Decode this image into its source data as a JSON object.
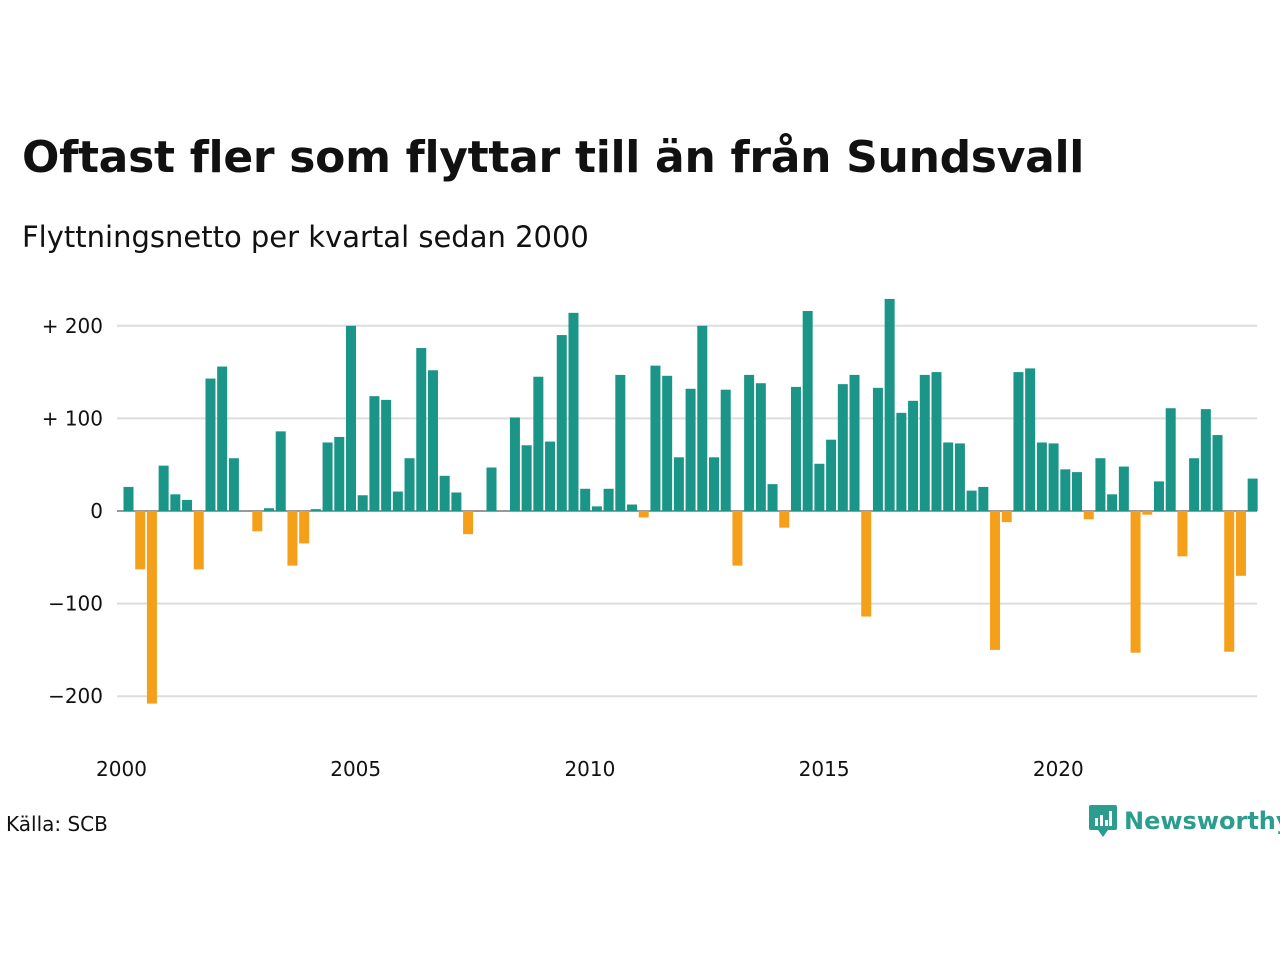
{
  "chart_data": {
    "type": "bar",
    "title": "Oftast fler som flyttar till än från Sundsvall",
    "subtitle": "Flyttningsnetto per kvartal sedan 2000",
    "source": "Källa: SCB",
    "brand": "Newsworthy",
    "x_tick_labels": [
      "2000",
      "2005",
      "2010",
      "2015",
      "2020"
    ],
    "y_tick_values": [
      200,
      100,
      0,
      -100,
      -200
    ],
    "y_tick_labels": [
      "+ 200",
      "+ 100",
      "0",
      "−100",
      "−200"
    ],
    "ylim": [
      -230,
      235
    ],
    "positive_color": "#1a9588",
    "negative_color": "#f5a01a",
    "grid": true,
    "series": [
      {
        "values": [
          26,
          -63,
          -208,
          49,
          18,
          12,
          -63,
          143,
          156,
          57,
          0,
          -22,
          3,
          86,
          -59,
          -35,
          2,
          74,
          80,
          200,
          17,
          124,
          120,
          21,
          57,
          176,
          152,
          38,
          20,
          -25,
          0,
          47,
          0,
          101,
          71,
          145,
          75,
          190,
          214,
          24,
          5,
          24,
          147,
          7,
          -7,
          157,
          146,
          58,
          132,
          200,
          58,
          131,
          -59,
          147,
          138,
          29,
          -18,
          134,
          216,
          51,
          77,
          137,
          147,
          -114,
          133,
          229,
          106,
          119,
          147,
          150,
          74,
          73,
          22,
          26,
          -150,
          -12,
          150,
          154,
          74,
          73,
          45,
          42,
          -9,
          57,
          18,
          48,
          -153,
          -4,
          32,
          111,
          -49,
          57,
          110,
          82,
          -152,
          -70,
          35
        ]
      }
    ]
  }
}
